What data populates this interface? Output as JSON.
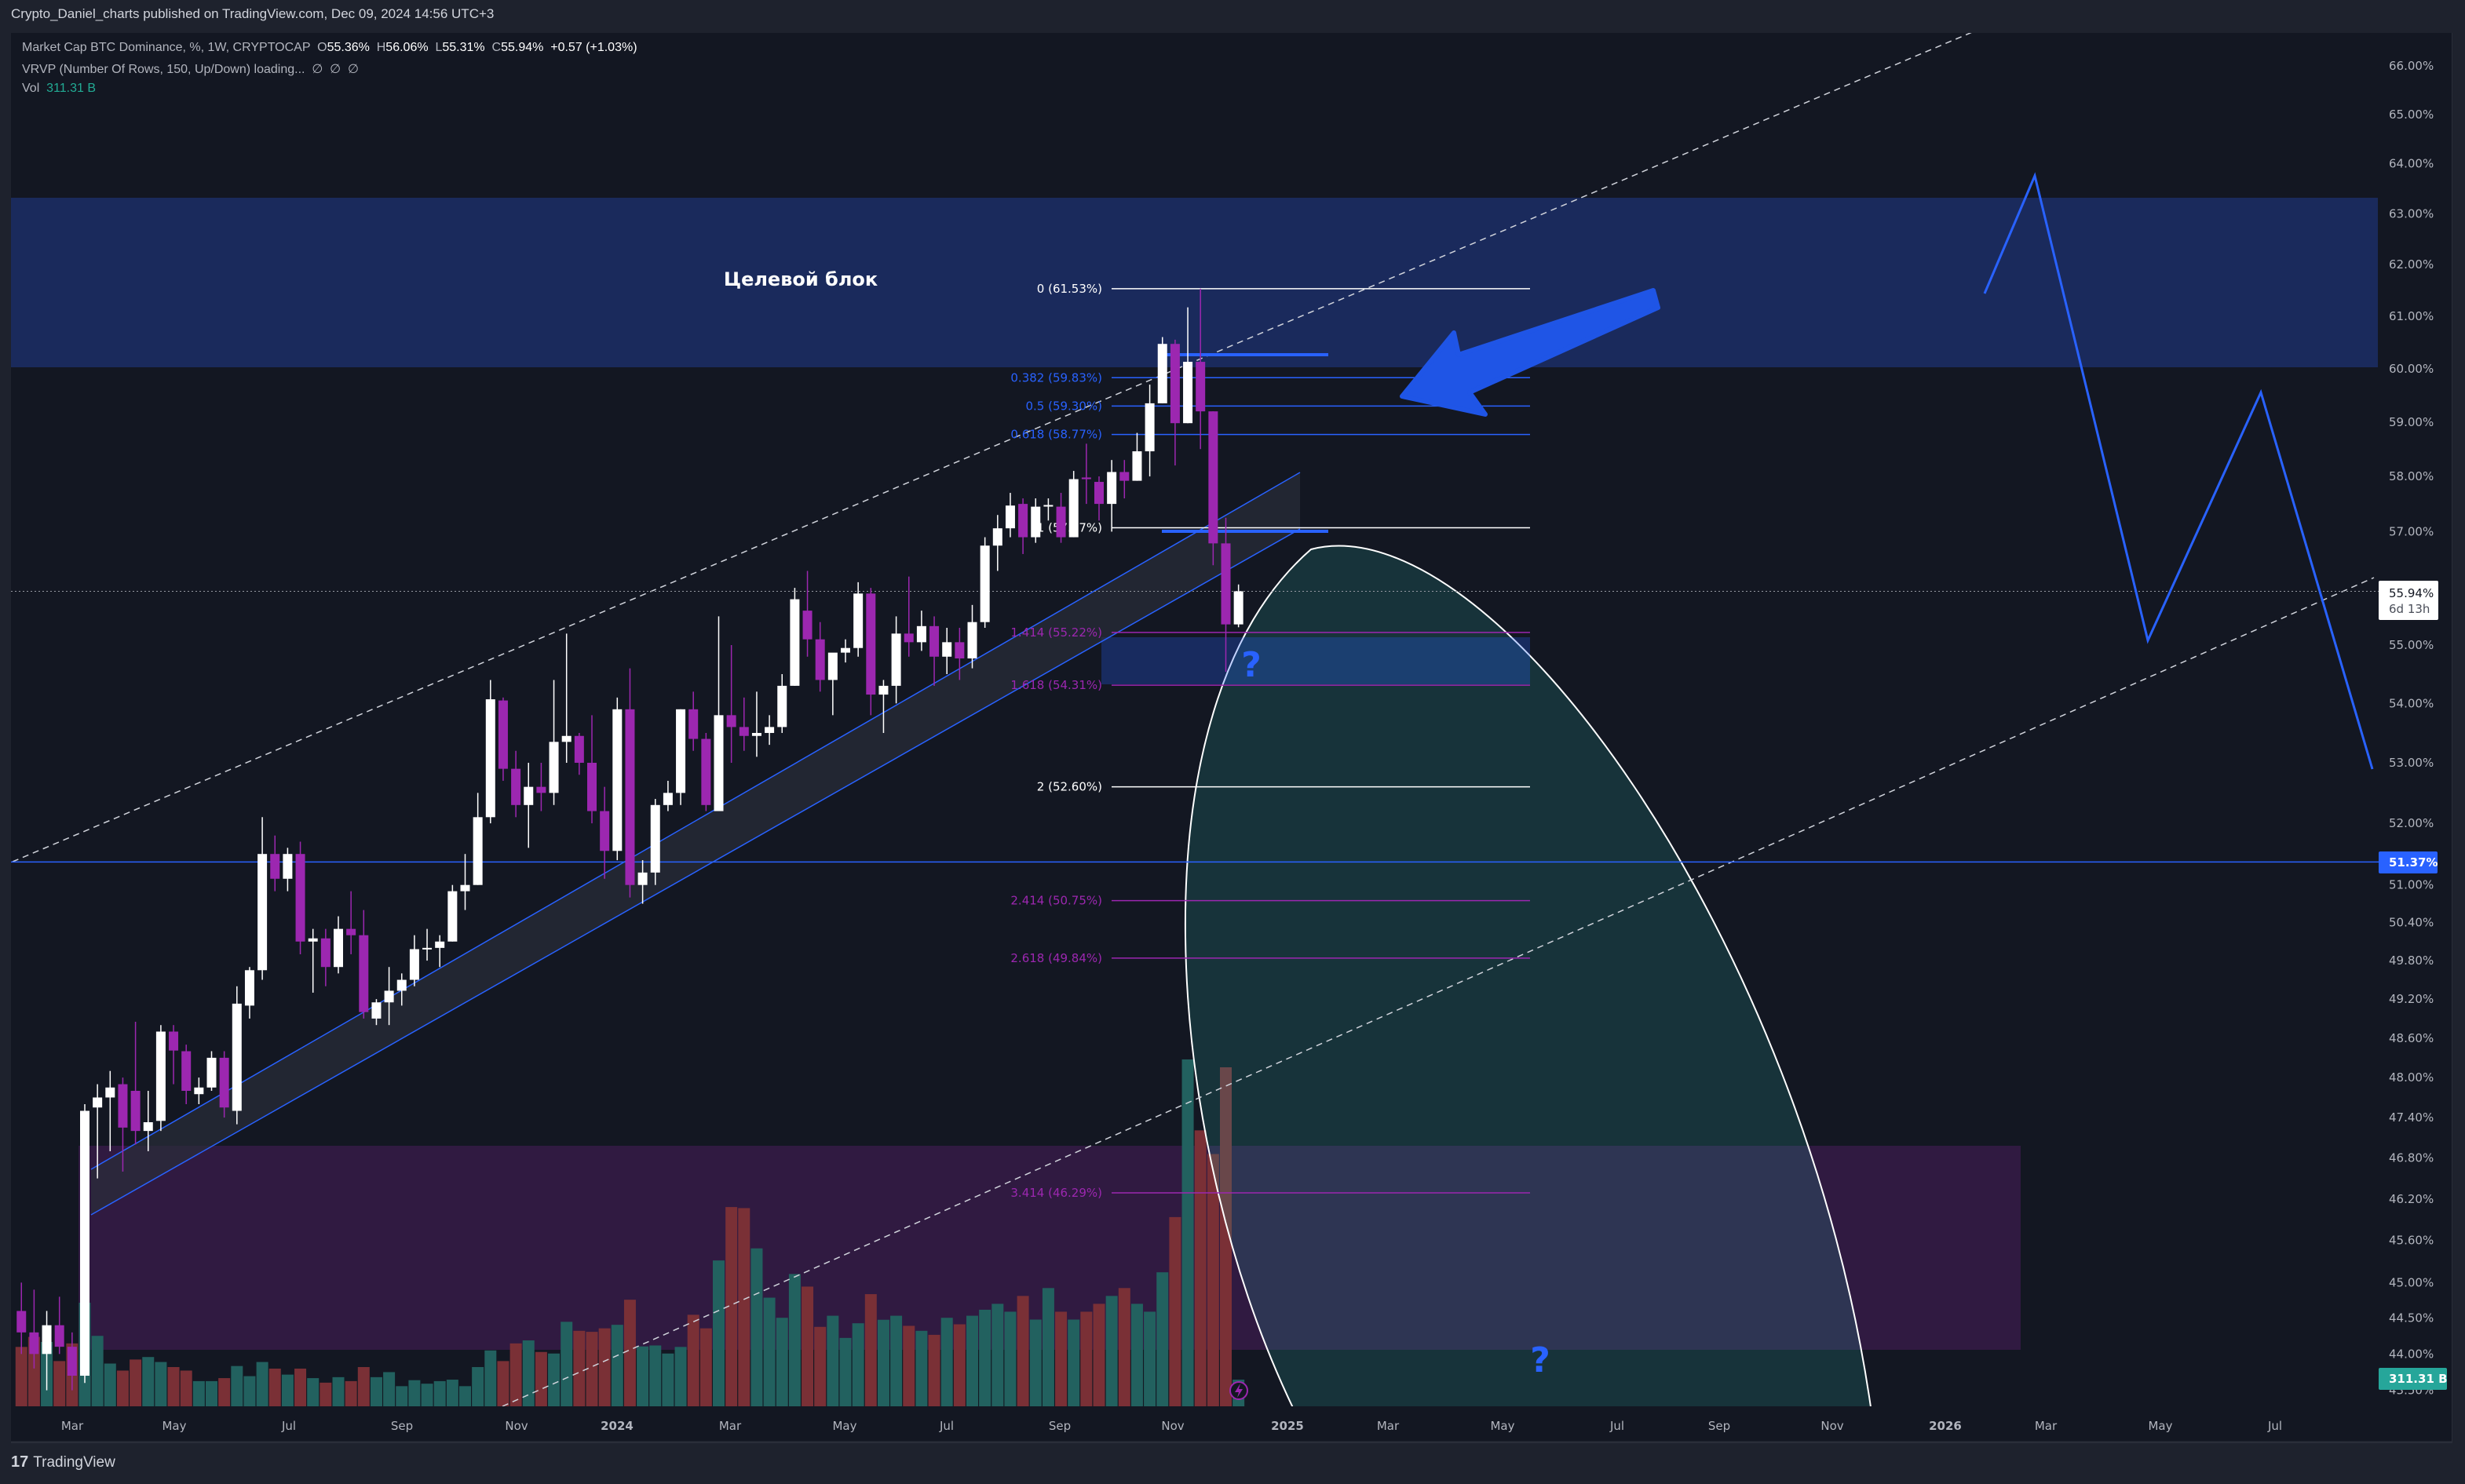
{
  "header": {
    "published": "Crypto_Daniel_charts published on TradingView.com, Dec 09, 2024 14:56 UTC+3",
    "symbol": "Market Cap BTC Dominance, %, 1W, CRYPTOCAP",
    "ohlc": {
      "o_label": "O",
      "o": "55.36%",
      "h_label": "H",
      "h": "56.06%",
      "l_label": "L",
      "l": "55.31%",
      "c_label": "C",
      "c": "55.94%"
    },
    "change": "+0.57 (+1.03%)",
    "vrvp": "VRVP (Number Of Rows, 150, Up/Down) loading...",
    "vrvp_values": [
      "∅",
      "∅",
      "∅"
    ],
    "vol_label": "Vol",
    "vol_value": "311.31 B"
  },
  "price_axis": {
    "current_price": "55.94%",
    "countdown": "6d 13h",
    "line_price": "51.37%",
    "volume_badge": "311.31 B"
  },
  "drawings": {
    "target_block_label": "Целевой блок",
    "question_mark_1": "?",
    "question_mark_2": "?",
    "fib_levels": [
      {
        "ratio": "0",
        "price": "61.53%",
        "value": 61.53,
        "color": "#ffffff"
      },
      {
        "ratio": "0.382",
        "price": "59.83%",
        "value": 59.83,
        "color": "#2962ff"
      },
      {
        "ratio": "0.5",
        "price": "59.30%",
        "value": 59.3,
        "color": "#2962ff"
      },
      {
        "ratio": "0.618",
        "price": "58.77%",
        "value": 58.77,
        "color": "#2962ff"
      },
      {
        "ratio": "1",
        "price": "57.07%",
        "value": 57.07,
        "color": "#ffffff"
      },
      {
        "ratio": "1.414",
        "price": "55.22%",
        "value": 55.22,
        "color": "#9c27b0"
      },
      {
        "ratio": "1.618",
        "price": "54.31%",
        "value": 54.31,
        "color": "#9c27b0"
      },
      {
        "ratio": "2",
        "price": "52.60%",
        "value": 52.6,
        "color": "#ffffff"
      },
      {
        "ratio": "2.414",
        "price": "50.75%",
        "value": 50.75,
        "color": "#9c27b0"
      },
      {
        "ratio": "2.618",
        "price": "49.84%",
        "value": 49.84,
        "color": "#9c27b0"
      },
      {
        "ratio": "3.414",
        "price": "46.29%",
        "value": 46.29,
        "color": "#9c27b0"
      }
    ]
  },
  "colors": {
    "up_candle": "#ffffff",
    "down_candle": "#9c27b0",
    "up_volume": "#22615f",
    "down_volume": "#7a3036",
    "accent_blue": "#2962ff",
    "volume_teal": "#26a69a",
    "background": "#131722"
  },
  "chart_data": {
    "type": "candlestick",
    "symbol": "Market Cap BTC Dominance, %, 1W, CRYPTOCAP",
    "scale": "log",
    "grid": false,
    "price_ticks": [
      "66.00%",
      "65.00%",
      "64.00%",
      "63.00%",
      "62.00%",
      "61.00%",
      "60.00%",
      "59.00%",
      "58.00%",
      "57.00%",
      "55.00%",
      "54.00%",
      "53.00%",
      "52.00%",
      "51.00%",
      "50.40%",
      "49.80%",
      "49.20%",
      "48.60%",
      "48.00%",
      "47.40%",
      "46.80%",
      "46.20%",
      "45.60%",
      "45.00%",
      "44.50%",
      "44.00%",
      "43.50%"
    ],
    "time_labels": [
      {
        "label": "Mar",
        "bold": false
      },
      {
        "label": "May",
        "bold": false
      },
      {
        "label": "Jul",
        "bold": false
      },
      {
        "label": "Sep",
        "bold": false
      },
      {
        "label": "Nov",
        "bold": false
      },
      {
        "label": "2024",
        "bold": true
      },
      {
        "label": "Mar",
        "bold": false
      },
      {
        "label": "May",
        "bold": false
      },
      {
        "label": "Jul",
        "bold": false
      },
      {
        "label": "Sep",
        "bold": false
      },
      {
        "label": "Nov",
        "bold": false
      },
      {
        "label": "2025",
        "bold": true
      },
      {
        "label": "Mar",
        "bold": false
      },
      {
        "label": "May",
        "bold": false
      },
      {
        "label": "Jul",
        "bold": false
      },
      {
        "label": "Sep",
        "bold": false
      },
      {
        "label": "Nov",
        "bold": false
      },
      {
        "label": "2026",
        "bold": true
      },
      {
        "label": "Mar",
        "bold": false
      },
      {
        "label": "May",
        "bold": false
      },
      {
        "label": "Jul",
        "bold": false
      }
    ],
    "candles_ohlc": [
      [
        44.6,
        45.0,
        44.0,
        44.3
      ],
      [
        44.3,
        44.9,
        43.8,
        44.0
      ],
      [
        44.0,
        44.6,
        43.5,
        44.4
      ],
      [
        44.4,
        44.8,
        44.0,
        44.1
      ],
      [
        44.1,
        44.3,
        43.5,
        43.7
      ],
      [
        43.7,
        47.6,
        43.6,
        47.5
      ],
      [
        47.55,
        47.9,
        46.5,
        47.7
      ],
      [
        47.7,
        48.1,
        46.9,
        47.85
      ],
      [
        47.9,
        48.0,
        46.6,
        47.25
      ],
      [
        47.8,
        48.85,
        47.0,
        47.2
      ],
      [
        47.2,
        47.8,
        46.9,
        47.33
      ],
      [
        47.35,
        48.8,
        47.2,
        48.7
      ],
      [
        48.7,
        48.8,
        47.9,
        48.41
      ],
      [
        48.4,
        48.5,
        47.6,
        47.8
      ],
      [
        47.75,
        48.0,
        47.6,
        47.85
      ],
      [
        47.85,
        48.4,
        47.8,
        48.3
      ],
      [
        48.3,
        48.4,
        47.4,
        47.55
      ],
      [
        47.5,
        49.4,
        47.3,
        49.13
      ],
      [
        49.1,
        49.7,
        48.9,
        49.65
      ],
      [
        49.65,
        52.1,
        49.5,
        51.5
      ],
      [
        51.5,
        51.8,
        50.9,
        51.1
      ],
      [
        51.1,
        51.6,
        50.9,
        51.5
      ],
      [
        51.5,
        51.7,
        49.9,
        50.1
      ],
      [
        50.1,
        50.3,
        49.3,
        50.15
      ],
      [
        50.15,
        50.3,
        49.4,
        49.7
      ],
      [
        49.7,
        50.5,
        49.6,
        50.3
      ],
      [
        50.3,
        50.9,
        49.9,
        50.2
      ],
      [
        50.2,
        50.6,
        48.9,
        49.0
      ],
      [
        48.9,
        49.2,
        48.8,
        49.15
      ],
      [
        49.15,
        49.7,
        48.8,
        49.33
      ],
      [
        49.33,
        49.6,
        49.1,
        49.5
      ],
      [
        49.5,
        50.2,
        49.4,
        49.98
      ],
      [
        49.98,
        50.3,
        49.8,
        50.0
      ],
      [
        50.0,
        50.2,
        49.7,
        50.1
      ],
      [
        50.1,
        51.0,
        50.1,
        50.9
      ],
      [
        50.9,
        51.5,
        50.6,
        51.0
      ],
      [
        51.0,
        52.5,
        51.0,
        52.1
      ],
      [
        52.1,
        54.4,
        52.0,
        54.07
      ],
      [
        54.05,
        54.1,
        52.7,
        52.9
      ],
      [
        52.9,
        53.2,
        52.1,
        52.3
      ],
      [
        52.3,
        53.0,
        51.6,
        52.6
      ],
      [
        52.6,
        53.0,
        52.2,
        52.5
      ],
      [
        52.5,
        54.4,
        52.3,
        53.35
      ],
      [
        53.35,
        55.2,
        53.0,
        53.45
      ],
      [
        53.45,
        53.5,
        52.8,
        53.0
      ],
      [
        53.0,
        53.8,
        52.0,
        52.2
      ],
      [
        52.2,
        52.6,
        51.1,
        51.55
      ],
      [
        51.55,
        54.1,
        51.4,
        53.9
      ],
      [
        53.9,
        54.6,
        50.8,
        51.0
      ],
      [
        51.0,
        51.4,
        50.7,
        51.2
      ],
      [
        51.2,
        52.4,
        51.0,
        52.3
      ],
      [
        52.3,
        52.7,
        52.2,
        52.5
      ],
      [
        52.5,
        53.9,
        52.3,
        53.9
      ],
      [
        53.9,
        54.2,
        53.2,
        53.4
      ],
      [
        53.4,
        53.5,
        52.2,
        52.3
      ],
      [
        52.2,
        55.5,
        52.2,
        53.8
      ],
      [
        53.8,
        55.0,
        53.0,
        53.6
      ],
      [
        53.6,
        54.1,
        53.2,
        53.45
      ],
      [
        53.45,
        54.2,
        53.1,
        53.5
      ],
      [
        53.5,
        53.8,
        53.3,
        53.6
      ],
      [
        53.6,
        54.5,
        53.5,
        54.3
      ],
      [
        54.3,
        56.0,
        54.3,
        55.8
      ],
      [
        55.6,
        56.3,
        54.8,
        55.1
      ],
      [
        55.1,
        55.4,
        54.2,
        54.4
      ],
      [
        54.4,
        54.6,
        53.8,
        54.87
      ],
      [
        54.87,
        55.1,
        54.7,
        54.95
      ],
      [
        54.95,
        56.1,
        54.8,
        55.9
      ],
      [
        55.9,
        56.0,
        53.8,
        54.15
      ],
      [
        54.15,
        54.4,
        53.5,
        54.3
      ],
      [
        54.3,
        55.5,
        54.0,
        55.2
      ],
      [
        55.2,
        56.2,
        54.8,
        55.05
      ],
      [
        55.05,
        55.6,
        54.9,
        55.33
      ],
      [
        55.33,
        55.5,
        54.3,
        54.8
      ],
      [
        54.8,
        55.3,
        54.5,
        55.05
      ],
      [
        55.05,
        55.3,
        54.4,
        54.77
      ],
      [
        54.77,
        55.7,
        54.6,
        55.4
      ],
      [
        55.4,
        56.9,
        55.3,
        56.75
      ],
      [
        56.75,
        57.3,
        56.3,
        57.06
      ],
      [
        57.06,
        57.7,
        56.9,
        57.47
      ],
      [
        57.5,
        57.6,
        56.6,
        56.9
      ],
      [
        56.9,
        57.6,
        56.8,
        57.45
      ],
      [
        57.47,
        57.6,
        57.2,
        57.48
      ],
      [
        57.45,
        57.7,
        56.8,
        56.9
      ],
      [
        56.9,
        58.1,
        56.9,
        57.95
      ],
      [
        57.98,
        58.6,
        57.5,
        57.95
      ],
      [
        57.9,
        58.0,
        57.2,
        57.5
      ],
      [
        57.5,
        58.3,
        57.0,
        58.08
      ],
      [
        58.08,
        58.3,
        57.6,
        57.92
      ],
      [
        57.92,
        58.8,
        57.92,
        58.46
      ],
      [
        58.46,
        59.7,
        58.0,
        59.35
      ],
      [
        59.35,
        60.6,
        59.35,
        60.47
      ],
      [
        60.47,
        60.55,
        58.2,
        58.98
      ],
      [
        58.98,
        61.17,
        58.98,
        60.13
      ],
      [
        60.13,
        61.53,
        58.5,
        59.2
      ],
      [
        59.2,
        59.2,
        56.4,
        56.79
      ],
      [
        56.79,
        57.25,
        54.54,
        55.36
      ],
      [
        55.36,
        56.06,
        55.31,
        55.94
      ]
    ],
    "volumes_billion": [
      693,
      810,
      751,
      528,
      734,
      1209,
      822,
      499,
      417,
      546,
      575,
      517,
      458,
      417,
      294,
      294,
      329,
      470,
      352,
      517,
      440,
      370,
      440,
      329,
      276,
      340,
      294,
      458,
      340,
      399,
      235,
      305,
      264,
      294,
      311,
      235,
      458,
      652,
      528,
      734,
      769,
      634,
      616,
      986,
      881,
      869,
      910,
      951,
      1244,
      699,
      710,
      616,
      693,
      1068,
      910,
      1702,
      2325,
      2313,
      1843,
      1268,
      1033,
      1544,
      1397,
      927,
      1057,
      798,
      969,
      1309,
      1010,
      1057,
      939,
      881,
      834,
      1033,
      957,
      1057,
      1127,
      1196,
      1104,
      1288,
      1012,
      1380,
      1104,
      1012,
      1104,
      1196,
      1288,
      1380,
      1196,
      1104,
      1564,
      2208,
      4048,
      3220,
      2944,
      3956,
      311.31
    ]
  },
  "footer": {
    "logo_mark": "17",
    "logo_text": "TradingView"
  }
}
